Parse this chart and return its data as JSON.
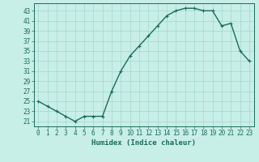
{
  "x": [
    0,
    1,
    2,
    3,
    4,
    5,
    6,
    7,
    8,
    9,
    10,
    11,
    12,
    13,
    14,
    15,
    16,
    17,
    18,
    19,
    20,
    21,
    22,
    23
  ],
  "y": [
    25,
    24,
    23,
    22,
    21,
    22,
    22,
    22,
    27,
    31,
    34,
    36,
    38,
    40,
    42,
    43,
    43.5,
    43.5,
    43,
    43,
    40,
    40.5,
    35,
    33
  ],
  "line_color": "#1a6b5a",
  "marker": "+",
  "background_color": "#c8eee8",
  "grid_color": "#a0d8cf",
  "xlabel": "Humidex (Indice chaleur)",
  "xlim": [
    -0.5,
    23.5
  ],
  "ylim": [
    20,
    44.5
  ],
  "yticks": [
    21,
    23,
    25,
    27,
    29,
    31,
    33,
    35,
    37,
    39,
    41,
    43
  ],
  "xticks": [
    0,
    1,
    2,
    3,
    4,
    5,
    6,
    7,
    8,
    9,
    10,
    11,
    12,
    13,
    14,
    15,
    16,
    17,
    18,
    19,
    20,
    21,
    22,
    23
  ],
  "tick_label_fontsize": 5.5,
  "xlabel_fontsize": 6.5,
  "line_width": 1.0,
  "marker_size": 3.5,
  "marker_edge_width": 0.8
}
